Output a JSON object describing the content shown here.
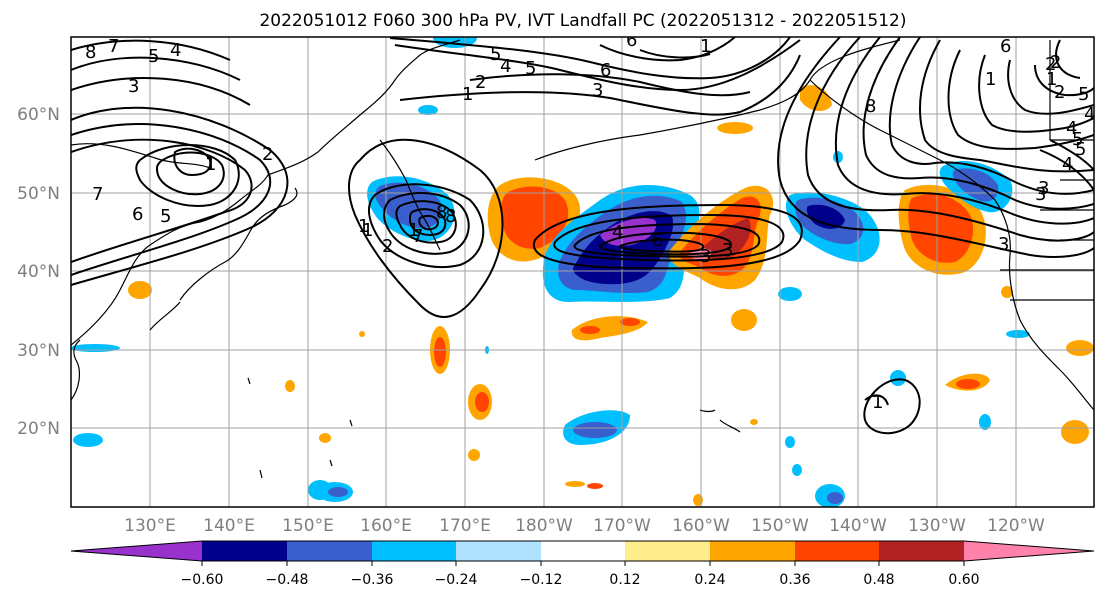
{
  "title": "2022051012 F060 300 hPa PV, IVT Landfall PC (2022051312 - 2022051512)",
  "lat_labels": [
    "60°N",
    "50°N",
    "40°N",
    "30°N",
    "20°N"
  ],
  "lon_labels": [
    "130°E",
    "140°E",
    "150°E",
    "160°E",
    "170°E",
    "180°W",
    "170°W",
    "160°W",
    "150°W",
    "140°W",
    "130°W",
    "120°W"
  ],
  "colorbar": {
    "colors": [
      "#9932cc",
      "#00008b",
      "#3a5fcd",
      "#00bfff",
      "#b0e2ff",
      "#ffffff",
      "#ffec8b",
      "#ffa500",
      "#ff4500",
      "#b22222",
      "#ff82ab"
    ],
    "tick_labels": [
      "−0.60",
      "−0.48",
      "−0.36",
      "−0.24",
      "−0.12",
      "0.12",
      "0.24",
      "0.36",
      "0.48",
      "0.60"
    ]
  },
  "contour_labels": [
    "8",
    "7",
    "5",
    "4",
    "3",
    "2",
    "1",
    "1",
    "5",
    "4",
    "3",
    "2",
    "1",
    "6",
    "7",
    "5",
    "8",
    "2",
    "1",
    "6",
    "8",
    "1",
    "7",
    "6",
    "4",
    "3",
    "1",
    "2",
    "3",
    "4",
    "5",
    "6",
    "5",
    "4",
    "1",
    "2",
    "3",
    "3",
    "1",
    "2",
    "4",
    "5",
    "8",
    "6",
    "5",
    "3",
    "1"
  ]
}
